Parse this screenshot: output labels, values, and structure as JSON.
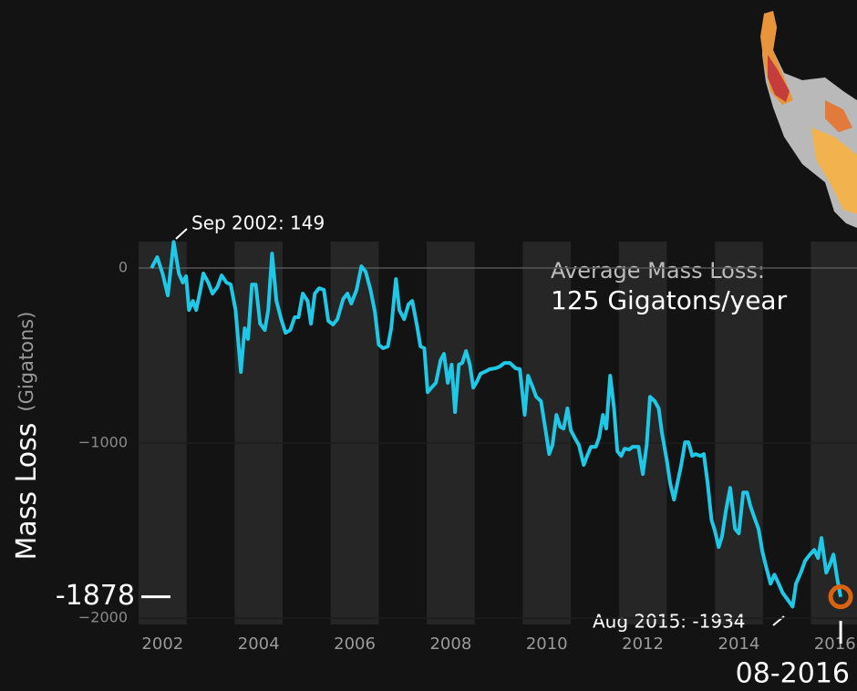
{
  "chart_data": {
    "type": "line",
    "ylabel": "Mass Loss",
    "ylabel_unit": "(Gigatons)",
    "annotations": {
      "peak": "Sep 2002: 149",
      "low": "Aug 2015: -1934",
      "average_title": "Average Mass Loss:",
      "average_value": "125 Gigatons/year"
    },
    "current": {
      "date": "08-2016",
      "value": -1878
    },
    "color": "#1ec8e6",
    "marker_color": "#d9630f",
    "xlim": [
      2001.5,
      2016.46
    ],
    "ylim": [
      -2036,
      151
    ],
    "xticks": [
      2002,
      2004,
      2006,
      2008,
      2010,
      2012,
      2014,
      2016
    ],
    "yticks": [
      0,
      {
        "value": -1000,
        "label": "−1000"
      },
      {
        "value": -2000,
        "label": "−2000"
      }
    ],
    "grid": true,
    "x": [
      2001.77,
      2001.89,
      2002.0,
      2002.11,
      2002.23,
      2002.34,
      2002.42,
      2002.49,
      2002.55,
      2002.63,
      2002.7,
      2002.78,
      2002.85,
      2002.95,
      2003.04,
      2003.14,
      2003.23,
      2003.33,
      2003.42,
      2003.52,
      2003.63,
      2003.71,
      2003.78,
      2003.86,
      2003.94,
      2004.03,
      2004.13,
      2004.2,
      2004.28,
      2004.37,
      2004.47,
      2004.56,
      2004.66,
      2004.75,
      2004.83,
      2004.92,
      2005.02,
      2005.09,
      2005.17,
      2005.26,
      2005.36,
      2005.45,
      2005.55,
      2005.64,
      2005.76,
      2005.85,
      2005.93,
      2006.04,
      2006.14,
      2006.23,
      2006.33,
      2006.42,
      2006.5,
      2006.59,
      2006.69,
      2006.76,
      2006.86,
      2006.93,
      2007.03,
      2007.12,
      2007.2,
      2007.3,
      2007.37,
      2007.45,
      2007.52,
      2007.6,
      2007.69,
      2007.79,
      2007.86,
      2007.94,
      2008.02,
      2008.09,
      2008.17,
      2008.24,
      2008.32,
      2008.4,
      2008.47,
      2008.55,
      2008.62,
      2008.7,
      2008.81,
      2008.93,
      2009.02,
      2009.12,
      2009.23,
      2009.35,
      2009.44,
      2009.54,
      2009.61,
      2009.71,
      2009.78,
      2009.88,
      2009.97,
      2010.05,
      2010.12,
      2010.2,
      2010.28,
      2010.35,
      2010.43,
      2010.5,
      2010.58,
      2010.67,
      2010.77,
      2010.84,
      2010.92,
      2011.02,
      2011.09,
      2011.17,
      2011.24,
      2011.32,
      2011.4,
      2011.47,
      2011.55,
      2011.62,
      2011.72,
      2011.79,
      2011.91,
      2012.0,
      2012.08,
      2012.15,
      2012.25,
      2012.33,
      2012.4,
      2012.5,
      2012.57,
      2012.65,
      2012.72,
      2012.8,
      2012.88,
      2012.95,
      2013.03,
      2013.1,
      2013.2,
      2013.27,
      2013.35,
      2013.43,
      2013.5,
      2013.58,
      2013.65,
      2013.73,
      2013.82,
      2013.92,
      2014.0,
      2014.09,
      2014.17,
      2014.24,
      2014.34,
      2014.41,
      2014.49,
      2014.56,
      2014.66,
      2014.74,
      2014.83,
      2014.91,
      2015.02,
      2015.12,
      2015.19,
      2015.29,
      2015.38,
      2015.48,
      2015.57,
      2015.65,
      2015.72,
      2015.82,
      2015.89,
      2015.97,
      2016.05,
      2016.12
    ],
    "values": [
      0,
      62,
      -31,
      -156,
      149,
      -31,
      -83,
      -47,
      -240,
      -188,
      -240,
      -135,
      -31,
      -83,
      -146,
      -109,
      -42,
      -83,
      -94,
      -240,
      -594,
      -344,
      -406,
      -94,
      -94,
      -318,
      -354,
      -240,
      83,
      -188,
      -292,
      -370,
      -354,
      -281,
      -281,
      -146,
      -188,
      -318,
      -146,
      -115,
      -125,
      -302,
      -323,
      -292,
      -177,
      -146,
      -203,
      -125,
      10,
      -21,
      -125,
      -250,
      -438,
      -458,
      -448,
      -344,
      -63,
      -240,
      -292,
      -208,
      -188,
      -333,
      -448,
      -458,
      -709,
      -683,
      -656,
      -526,
      -490,
      -656,
      -552,
      -823,
      -552,
      -542,
      -474,
      -552,
      -683,
      -646,
      -604,
      -594,
      -578,
      -573,
      -563,
      -542,
      -542,
      -573,
      -578,
      -839,
      -615,
      -683,
      -735,
      -761,
      -917,
      -1063,
      -1011,
      -839,
      -907,
      -917,
      -802,
      -927,
      -969,
      -1011,
      -1125,
      -1073,
      -1021,
      -1021,
      -969,
      -839,
      -917,
      -615,
      -802,
      -1047,
      -1073,
      -1032,
      -1037,
      -1021,
      -1021,
      -1177,
      -1011,
      -735,
      -761,
      -802,
      -943,
      -1099,
      -1230,
      -1323,
      -1230,
      -1125,
      -995,
      -995,
      -1073,
      -1063,
      -1073,
      -1063,
      -1230,
      -1438,
      -1500,
      -1594,
      -1532,
      -1386,
      -1256,
      -1490,
      -1516,
      -1282,
      -1282,
      -1360,
      -1438,
      -1490,
      -1620,
      -1698,
      -1803,
      -1751,
      -1803,
      -1855,
      -1896,
      -1934,
      -1803,
      -1740,
      -1672,
      -1636,
      -1610,
      -1657,
      -1542,
      -1740,
      -1698,
      -1636,
      -1777,
      -1878
    ]
  }
}
